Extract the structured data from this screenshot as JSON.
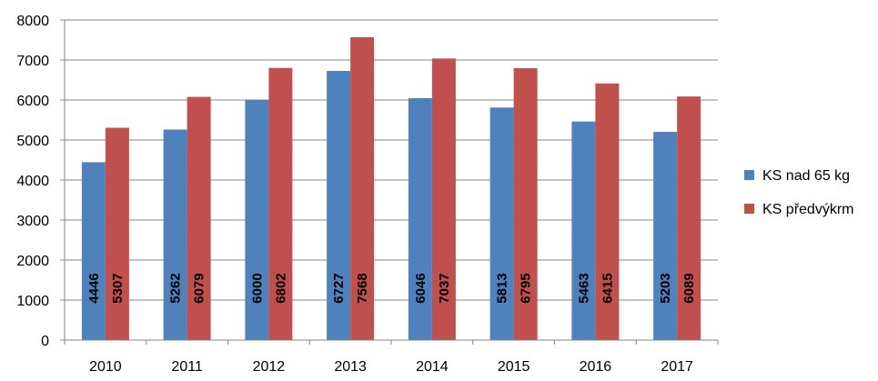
{
  "chart_data": {
    "type": "bar",
    "title": "",
    "xlabel": "",
    "ylabel": "",
    "categories": [
      "2010",
      "2011",
      "2012",
      "2013",
      "2014",
      "2015",
      "2016",
      "2017"
    ],
    "series": [
      {
        "name": "KS nad 65 kg",
        "color": "#4F81BD",
        "values": [
          4446,
          5262,
          6000,
          6727,
          6046,
          5813,
          5463,
          5203
        ]
      },
      {
        "name": "KS předvýkrm",
        "color": "#C0504D",
        "values": [
          5307,
          6079,
          6802,
          7568,
          7037,
          6795,
          6415,
          6089
        ]
      }
    ],
    "ylim": [
      0,
      8000
    ],
    "yticks": [
      0,
      1000,
      2000,
      3000,
      4000,
      5000,
      6000,
      7000,
      8000
    ],
    "grid": true,
    "legend_position": "right",
    "data_labels": "inside-base-rotated"
  }
}
